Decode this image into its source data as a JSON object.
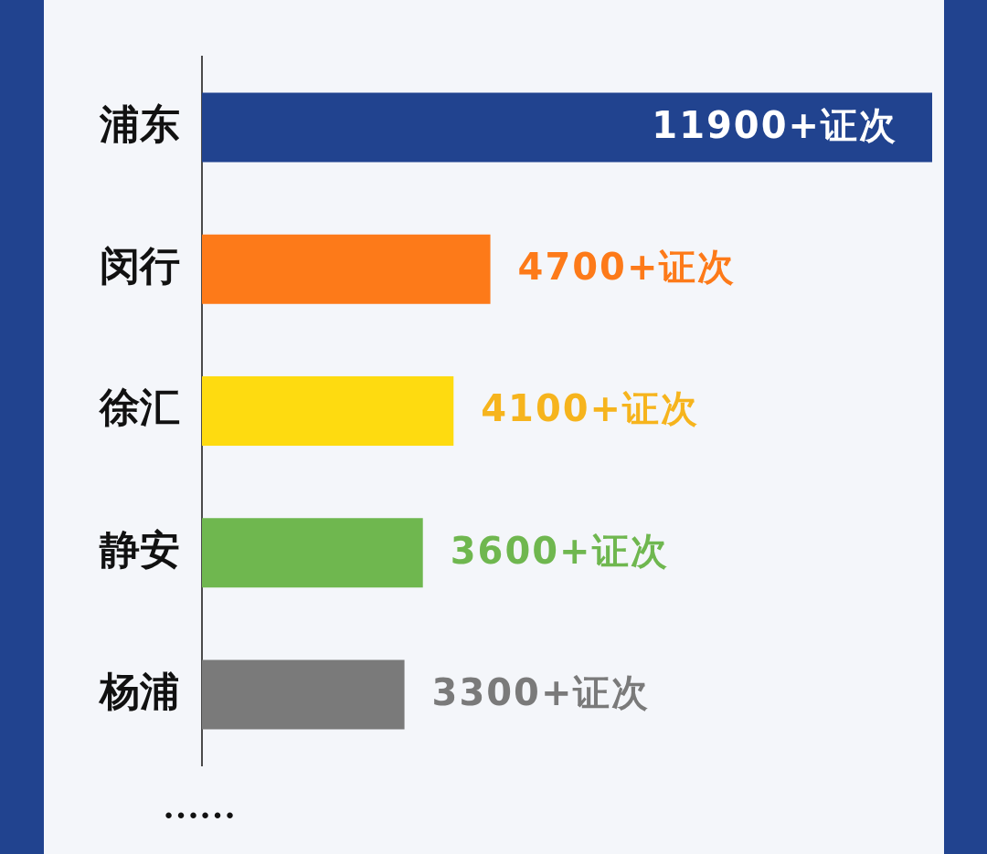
{
  "chart_data": {
    "type": "bar",
    "orientation": "horizontal",
    "categories": [
      "浦东",
      "闵行",
      "徐汇",
      "静安",
      "杨浦"
    ],
    "values": [
      11900,
      4700,
      4100,
      3600,
      3300
    ],
    "colors": [
      "#21438f",
      "#fd7a19",
      "#fedb10",
      "#6fb74f",
      "#7a7a7a"
    ],
    "value_labels": [
      "11900+证次",
      "4700+证次",
      "4100+证次",
      "3600+证次",
      "3300+证次"
    ],
    "xlim": [
      0,
      11900
    ],
    "tick_labels": "y",
    "annotations": [
      "……"
    ]
  }
}
